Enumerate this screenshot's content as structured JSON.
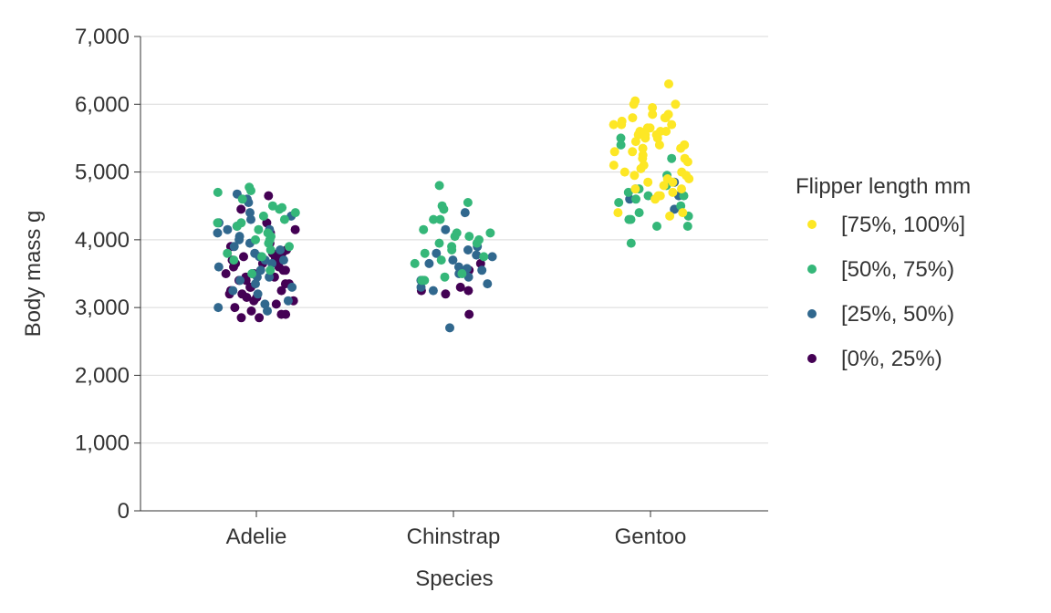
{
  "chart_data": {
    "type": "scatter",
    "title": "",
    "xlabel": "Species",
    "ylabel": "Body mass g",
    "categories": [
      "Adelie",
      "Chinstrap",
      "Gentoo"
    ],
    "ylim": [
      0,
      7000
    ],
    "y_ticks": [
      0,
      1000,
      2000,
      3000,
      4000,
      5000,
      6000,
      7000
    ],
    "y_tick_labels": [
      "0",
      "1,000",
      "2,000",
      "3,000",
      "4,000",
      "5,000",
      "6,000",
      "7,000"
    ],
    "grid": "horizontal",
    "jitter": true,
    "legend": {
      "title": "Flipper length mm",
      "placement": "right"
    },
    "series": [
      {
        "name": "[75%, 100%]",
        "color": "#fde725",
        "points": [
          [
            "Gentoo",
            6300
          ],
          [
            "Gentoo",
            6050
          ],
          [
            "Gentoo",
            6000
          ],
          [
            "Gentoo",
            6000
          ],
          [
            "Gentoo",
            5950
          ],
          [
            "Gentoo",
            5850
          ],
          [
            "Gentoo",
            5850
          ],
          [
            "Gentoo",
            5800
          ],
          [
            "Gentoo",
            5800
          ],
          [
            "Gentoo",
            5800
          ],
          [
            "Gentoo",
            5750
          ],
          [
            "Gentoo",
            5700
          ],
          [
            "Gentoo",
            5700
          ],
          [
            "Gentoo",
            5700
          ],
          [
            "Gentoo",
            5650
          ],
          [
            "Gentoo",
            5650
          ],
          [
            "Gentoo",
            5600
          ],
          [
            "Gentoo",
            5600
          ],
          [
            "Gentoo",
            5600
          ],
          [
            "Gentoo",
            5550
          ],
          [
            "Gentoo",
            5550
          ],
          [
            "Gentoo",
            5550
          ],
          [
            "Gentoo",
            5500
          ],
          [
            "Gentoo",
            5500
          ],
          [
            "Gentoo",
            5450
          ],
          [
            "Gentoo",
            5400
          ],
          [
            "Gentoo",
            5400
          ],
          [
            "Gentoo",
            5400
          ],
          [
            "Gentoo",
            5350
          ],
          [
            "Gentoo",
            5350
          ],
          [
            "Gentoo",
            5300
          ],
          [
            "Gentoo",
            5300
          ],
          [
            "Gentoo",
            5250
          ],
          [
            "Gentoo",
            5200
          ],
          [
            "Gentoo",
            5200
          ],
          [
            "Gentoo",
            5150
          ],
          [
            "Gentoo",
            5100
          ],
          [
            "Gentoo",
            5100
          ],
          [
            "Gentoo",
            5050
          ],
          [
            "Gentoo",
            5000
          ],
          [
            "Gentoo",
            5000
          ],
          [
            "Gentoo",
            4950
          ],
          [
            "Gentoo",
            4950
          ],
          [
            "Gentoo",
            4900
          ],
          [
            "Gentoo",
            4900
          ],
          [
            "Gentoo",
            4850
          ],
          [
            "Gentoo",
            4850
          ],
          [
            "Gentoo",
            4800
          ],
          [
            "Gentoo",
            4750
          ],
          [
            "Gentoo",
            4750
          ],
          [
            "Gentoo",
            4700
          ],
          [
            "Gentoo",
            4650
          ],
          [
            "Gentoo",
            4650
          ],
          [
            "Gentoo",
            4600
          ],
          [
            "Gentoo",
            4400
          ],
          [
            "Gentoo",
            4400
          ],
          [
            "Gentoo",
            4350
          ]
        ]
      },
      {
        "name": "[50%, 75%)",
        "color": "#35b779",
        "points": [
          [
            "Adelie",
            4775
          ],
          [
            "Adelie",
            4725
          ],
          [
            "Adelie",
            4700
          ],
          [
            "Adelie",
            4600
          ],
          [
            "Adelie",
            4500
          ],
          [
            "Adelie",
            4475
          ],
          [
            "Adelie",
            4450
          ],
          [
            "Adelie",
            4400
          ],
          [
            "Adelie",
            4350
          ],
          [
            "Adelie",
            4300
          ],
          [
            "Adelie",
            4250
          ],
          [
            "Adelie",
            4250
          ],
          [
            "Adelie",
            4200
          ],
          [
            "Adelie",
            4150
          ],
          [
            "Adelie",
            4100
          ],
          [
            "Adelie",
            4050
          ],
          [
            "Adelie",
            4000
          ],
          [
            "Adelie",
            4000
          ],
          [
            "Adelie",
            3950
          ],
          [
            "Adelie",
            3900
          ],
          [
            "Adelie",
            3850
          ],
          [
            "Adelie",
            3800
          ],
          [
            "Adelie",
            3750
          ],
          [
            "Adelie",
            3700
          ],
          [
            "Adelie",
            3550
          ],
          [
            "Adelie",
            3500
          ],
          [
            "Chinstrap",
            4800
          ],
          [
            "Chinstrap",
            4550
          ],
          [
            "Chinstrap",
            4500
          ],
          [
            "Chinstrap",
            4450
          ],
          [
            "Chinstrap",
            4300
          ],
          [
            "Chinstrap",
            4300
          ],
          [
            "Chinstrap",
            4150
          ],
          [
            "Chinstrap",
            4100
          ],
          [
            "Chinstrap",
            4100
          ],
          [
            "Chinstrap",
            4050
          ],
          [
            "Chinstrap",
            4050
          ],
          [
            "Chinstrap",
            4000
          ],
          [
            "Chinstrap",
            3950
          ],
          [
            "Chinstrap",
            3950
          ],
          [
            "Chinstrap",
            3900
          ],
          [
            "Chinstrap",
            3850
          ],
          [
            "Chinstrap",
            3800
          ],
          [
            "Chinstrap",
            3750
          ],
          [
            "Chinstrap",
            3700
          ],
          [
            "Chinstrap",
            3650
          ],
          [
            "Chinstrap",
            3500
          ],
          [
            "Chinstrap",
            3450
          ],
          [
            "Chinstrap",
            3400
          ],
          [
            "Chinstrap",
            3400
          ],
          [
            "Gentoo",
            5500
          ],
          [
            "Gentoo",
            5400
          ],
          [
            "Gentoo",
            5200
          ],
          [
            "Gentoo",
            4950
          ],
          [
            "Gentoo",
            4800
          ],
          [
            "Gentoo",
            4750
          ],
          [
            "Gentoo",
            4700
          ],
          [
            "Gentoo",
            4650
          ],
          [
            "Gentoo",
            4650
          ],
          [
            "Gentoo",
            4600
          ],
          [
            "Gentoo",
            4550
          ],
          [
            "Gentoo",
            4500
          ],
          [
            "Gentoo",
            4400
          ],
          [
            "Gentoo",
            4350
          ],
          [
            "Gentoo",
            4300
          ],
          [
            "Gentoo",
            4300
          ],
          [
            "Gentoo",
            4200
          ],
          [
            "Gentoo",
            4200
          ],
          [
            "Gentoo",
            3950
          ]
        ]
      },
      {
        "name": "[25%, 50%)",
        "color": "#31688e",
        "points": [
          [
            "Adelie",
            4675
          ],
          [
            "Adelie",
            4600
          ],
          [
            "Adelie",
            4550
          ],
          [
            "Adelie",
            4400
          ],
          [
            "Adelie",
            4350
          ],
          [
            "Adelie",
            4300
          ],
          [
            "Adelie",
            4250
          ],
          [
            "Adelie",
            4200
          ],
          [
            "Adelie",
            4150
          ],
          [
            "Adelie",
            4150
          ],
          [
            "Adelie",
            4100
          ],
          [
            "Adelie",
            4050
          ],
          [
            "Adelie",
            4000
          ],
          [
            "Adelie",
            3950
          ],
          [
            "Adelie",
            3900
          ],
          [
            "Adelie",
            3850
          ],
          [
            "Adelie",
            3800
          ],
          [
            "Adelie",
            3750
          ],
          [
            "Adelie",
            3700
          ],
          [
            "Adelie",
            3700
          ],
          [
            "Adelie",
            3650
          ],
          [
            "Adelie",
            3600
          ],
          [
            "Adelie",
            3550
          ],
          [
            "Adelie",
            3500
          ],
          [
            "Adelie",
            3450
          ],
          [
            "Adelie",
            3450
          ],
          [
            "Adelie",
            3400
          ],
          [
            "Adelie",
            3350
          ],
          [
            "Adelie",
            3300
          ],
          [
            "Adelie",
            3250
          ],
          [
            "Adelie",
            3200
          ],
          [
            "Adelie",
            3100
          ],
          [
            "Adelie",
            3050
          ],
          [
            "Adelie",
            3000
          ],
          [
            "Adelie",
            2950
          ],
          [
            "Chinstrap",
            4400
          ],
          [
            "Chinstrap",
            4150
          ],
          [
            "Chinstrap",
            3900
          ],
          [
            "Chinstrap",
            3850
          ],
          [
            "Chinstrap",
            3800
          ],
          [
            "Chinstrap",
            3775
          ],
          [
            "Chinstrap",
            3750
          ],
          [
            "Chinstrap",
            3700
          ],
          [
            "Chinstrap",
            3650
          ],
          [
            "Chinstrap",
            3600
          ],
          [
            "Chinstrap",
            3575
          ],
          [
            "Chinstrap",
            3550
          ],
          [
            "Chinstrap",
            3500
          ],
          [
            "Chinstrap",
            3450
          ],
          [
            "Chinstrap",
            3400
          ],
          [
            "Chinstrap",
            3350
          ],
          [
            "Chinstrap",
            3300
          ],
          [
            "Chinstrap",
            3250
          ],
          [
            "Chinstrap",
            2700
          ],
          [
            "Gentoo",
            4850
          ],
          [
            "Gentoo",
            4750
          ],
          [
            "Gentoo",
            4650
          ],
          [
            "Gentoo",
            4600
          ],
          [
            "Gentoo",
            4450
          ]
        ]
      },
      {
        "name": "[0%, 25%)",
        "color": "#440154",
        "points": [
          [
            "Adelie",
            4650
          ],
          [
            "Adelie",
            4450
          ],
          [
            "Adelie",
            4250
          ],
          [
            "Adelie",
            4150
          ],
          [
            "Adelie",
            4100
          ],
          [
            "Adelie",
            3950
          ],
          [
            "Adelie",
            3900
          ],
          [
            "Adelie",
            3850
          ],
          [
            "Adelie",
            3800
          ],
          [
            "Adelie",
            3800
          ],
          [
            "Adelie",
            3750
          ],
          [
            "Adelie",
            3750
          ],
          [
            "Adelie",
            3700
          ],
          [
            "Adelie",
            3700
          ],
          [
            "Adelie",
            3650
          ],
          [
            "Adelie",
            3650
          ],
          [
            "Adelie",
            3600
          ],
          [
            "Adelie",
            3600
          ],
          [
            "Adelie",
            3550
          ],
          [
            "Adelie",
            3550
          ],
          [
            "Adelie",
            3500
          ],
          [
            "Adelie",
            3500
          ],
          [
            "Adelie",
            3450
          ],
          [
            "Adelie",
            3450
          ],
          [
            "Adelie",
            3400
          ],
          [
            "Adelie",
            3400
          ],
          [
            "Adelie",
            3350
          ],
          [
            "Adelie",
            3350
          ],
          [
            "Adelie",
            3300
          ],
          [
            "Adelie",
            3300
          ],
          [
            "Adelie",
            3250
          ],
          [
            "Adelie",
            3250
          ],
          [
            "Adelie",
            3200
          ],
          [
            "Adelie",
            3200
          ],
          [
            "Adelie",
            3150
          ],
          [
            "Adelie",
            3150
          ],
          [
            "Adelie",
            3100
          ],
          [
            "Adelie",
            3100
          ],
          [
            "Adelie",
            3050
          ],
          [
            "Adelie",
            3000
          ],
          [
            "Adelie",
            2950
          ],
          [
            "Adelie",
            2900
          ],
          [
            "Adelie",
            2900
          ],
          [
            "Adelie",
            2850
          ],
          [
            "Adelie",
            2850
          ],
          [
            "Chinstrap",
            3650
          ],
          [
            "Chinstrap",
            3550
          ],
          [
            "Chinstrap",
            3400
          ],
          [
            "Chinstrap",
            3300
          ],
          [
            "Chinstrap",
            3250
          ],
          [
            "Chinstrap",
            3250
          ],
          [
            "Chinstrap",
            3200
          ],
          [
            "Chinstrap",
            2900
          ]
        ]
      }
    ]
  }
}
